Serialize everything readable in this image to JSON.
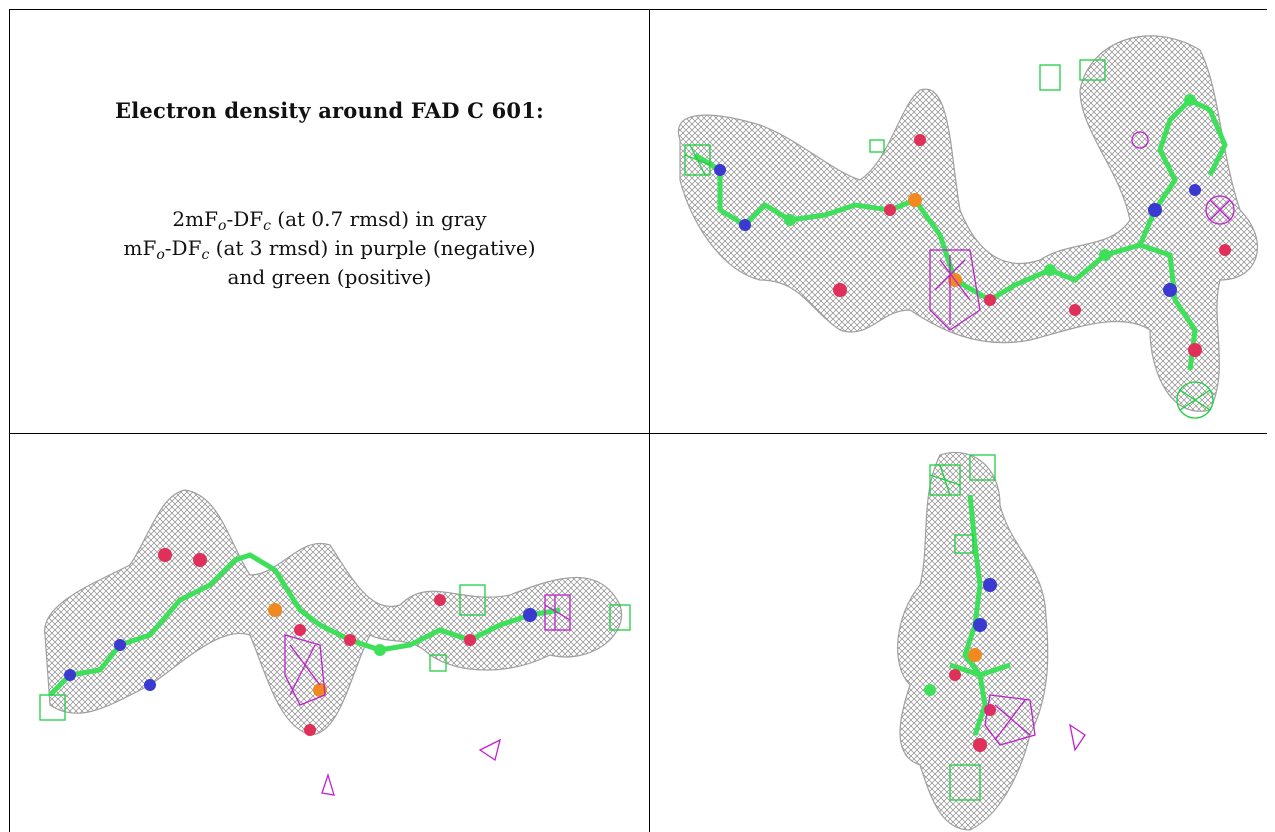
{
  "caption": {
    "title": "Electron density around FAD C 601:",
    "line1": {
      "pre": "2mF",
      "sub1": "o",
      "mid": "-DF",
      "sub2": "c",
      "post": " (at 0.7 rmsd) in gray"
    },
    "line2": {
      "pre": "mF",
      "sub1": "o",
      "mid": "-DF",
      "sub2": "c",
      "post": " (at 3 rmsd) in purple (negative)"
    },
    "line3": "and green (positive)"
  },
  "colors": {
    "mesh": "#8a8a8a",
    "carbon": "#3ee05a",
    "nitrogen": "#3a3ad0",
    "oxygen": "#e0305a",
    "phosphorus": "#f08a20",
    "negative": "#c020d0",
    "positive": "#20d040"
  },
  "views": [
    {
      "name": "view-1",
      "icon": "molecule-density-view"
    },
    {
      "name": "view-2",
      "icon": "molecule-density-view"
    },
    {
      "name": "view-3",
      "icon": "molecule-density-view"
    }
  ]
}
